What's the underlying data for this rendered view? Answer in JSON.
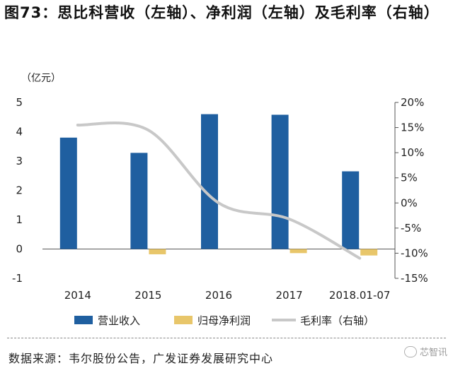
{
  "title": "图73：思比科营收（左轴）、净利润（左轴）及毛利率（右轴）",
  "source": "数据来源：韦尔股份公告，广发证券发展研究中心",
  "watermark": "芯智讯",
  "colors": {
    "revenue": "#1f5fa0",
    "net_profit": "#e8c66a",
    "gross_margin": "#c8c8c8",
    "axis": "#555555"
  },
  "chart_data": {
    "type": "bar",
    "unit_label": "（亿元）",
    "categories": [
      "2014",
      "2015",
      "2016",
      "2017",
      "2018.01-07"
    ],
    "left_axis": {
      "ylim": [
        -1,
        5
      ],
      "ticks": [
        "5",
        "4",
        "3",
        "2",
        "1",
        "0",
        "-1"
      ],
      "tick_values": [
        5,
        4,
        3,
        2,
        1,
        0,
        -1
      ]
    },
    "right_axis": {
      "ylim": [
        -15,
        20
      ],
      "ticks": [
        "20%",
        "15%",
        "10%",
        "5%",
        "0%",
        "-5%",
        "-10%",
        "-15%"
      ],
      "tick_values": [
        20,
        15,
        10,
        5,
        0,
        -5,
        -10,
        -15
      ]
    },
    "series": [
      {
        "name": "营业收入",
        "type": "bar",
        "axis": "left",
        "values": [
          3.8,
          3.28,
          4.6,
          4.58,
          2.65
        ]
      },
      {
        "name": "归母净利润",
        "type": "bar",
        "axis": "left",
        "values": [
          0.0,
          -0.18,
          0.0,
          -0.14,
          -0.22
        ]
      },
      {
        "name": "毛利率（右轴）",
        "type": "line",
        "axis": "right",
        "values": [
          15.5,
          14.5,
          0.0,
          -3.2,
          -11.0
        ]
      }
    ],
    "legend_placement": "bottom",
    "grid": false
  }
}
